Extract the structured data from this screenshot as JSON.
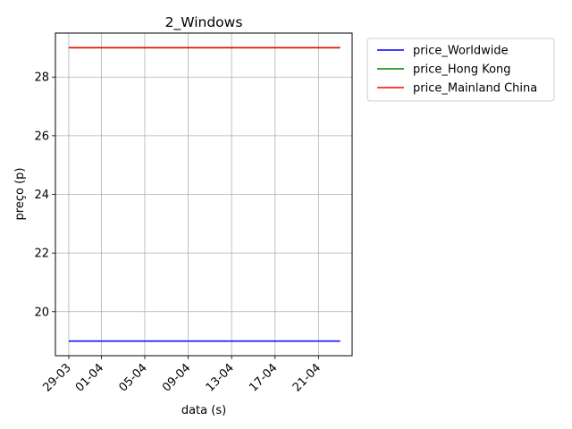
{
  "chart_data": {
    "type": "line",
    "title": "2_Windows",
    "xlabel": "data (s)",
    "ylabel": "preço (p)",
    "x": [
      "2000-03-29",
      "2000-04-23"
    ],
    "x_ticks": [
      "29-03",
      "01-04",
      "05-04",
      "09-04",
      "13-04",
      "17-04",
      "21-04"
    ],
    "y_ticks": [
      20,
      22,
      24,
      26,
      28
    ],
    "ylim": [
      18.5,
      29.5
    ],
    "grid": true,
    "legend_position": "outside-right",
    "series": [
      {
        "name": "price_Worldwide",
        "color": "#0000ff",
        "values": [
          19,
          19
        ]
      },
      {
        "name": "price_Hong Kong",
        "color": "#008000",
        "values": [
          29,
          29
        ]
      },
      {
        "name": "price_Mainland China",
        "color": "#ff0000",
        "values": [
          29,
          29
        ]
      }
    ]
  }
}
